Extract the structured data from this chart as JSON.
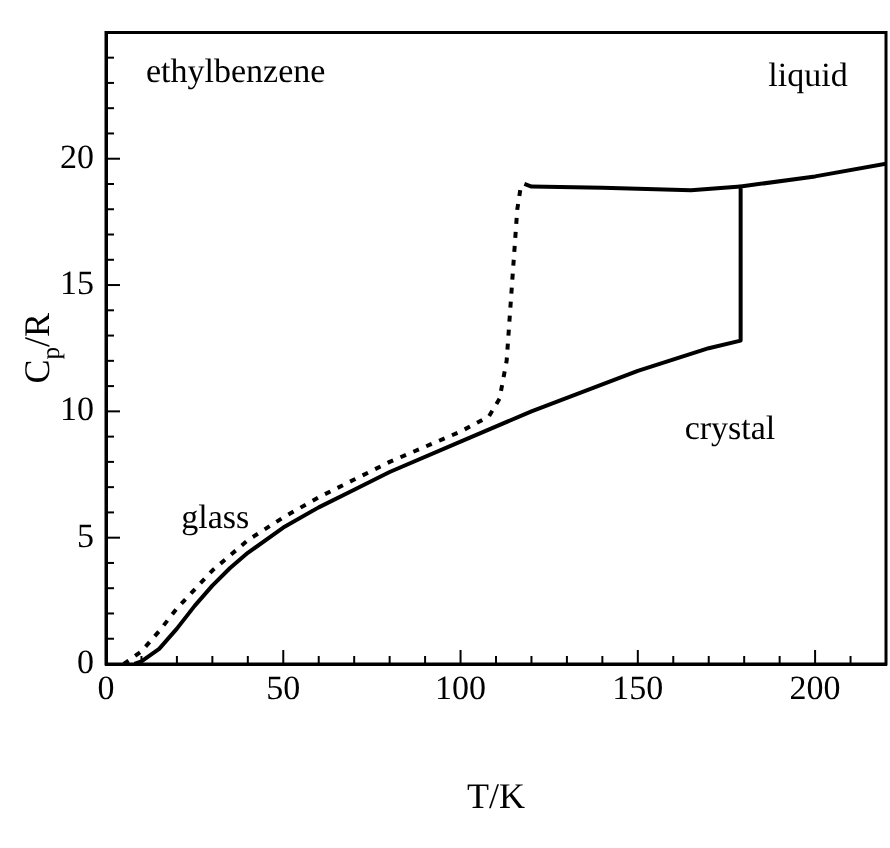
{
  "chart_data": {
    "type": "line",
    "title": "ethylbenzene",
    "xlabel": "T/K",
    "ylabel": "C$_{p}$/R",
    "xlim": [
      0,
      220
    ],
    "ylim": [
      0,
      25
    ],
    "xticks": [
      0,
      {
        "value": 10,
        "label": null
      },
      {
        "value": 20,
        "label": null
      },
      {
        "value": 30,
        "label": null
      },
      {
        "value": 40,
        "label": null
      },
      50,
      {
        "value": 60,
        "label": null
      },
      {
        "value": 70,
        "label": null
      },
      {
        "value": 80,
        "label": null
      },
      {
        "value": 90,
        "label": null
      },
      100,
      {
        "value": 110,
        "label": null
      },
      {
        "value": 120,
        "label": null
      },
      {
        "value": 130,
        "label": null
      },
      {
        "value": 140,
        "label": null
      },
      150,
      {
        "value": 160,
        "label": null
      },
      {
        "value": 170,
        "label": null
      },
      {
        "value": 180,
        "label": null
      },
      {
        "value": 190,
        "label": null
      },
      200,
      {
        "value": 210,
        "label": null
      }
    ],
    "yticks": [
      0,
      {
        "value": 1,
        "label": null
      },
      {
        "value": 2,
        "label": null
      },
      {
        "value": 3,
        "label": null
      },
      {
        "value": 4,
        "label": null
      },
      5,
      {
        "value": 6,
        "label": null
      },
      {
        "value": 7,
        "label": null
      },
      {
        "value": 8,
        "label": null
      },
      {
        "value": 9,
        "label": null
      },
      10,
      {
        "value": 11,
        "label": null
      },
      {
        "value": 12,
        "label": null
      },
      {
        "value": 13,
        "label": null
      },
      {
        "value": 14,
        "label": null
      },
      15,
      {
        "value": 16,
        "label": null
      },
      {
        "value": 17,
        "label": null
      },
      {
        "value": 18,
        "label": null
      },
      {
        "value": 19,
        "label": null
      },
      20,
      {
        "value": 21,
        "label": null
      },
      {
        "value": 22,
        "label": null
      },
      {
        "value": 23,
        "label": null
      },
      {
        "value": 24,
        "label": null
      }
    ],
    "grid": false,
    "legend": false,
    "marker": "none",
    "series": [
      {
        "color": "#000000",
        "line_style": "solid",
        "x": [
          8,
          10,
          15,
          20,
          25,
          30,
          35,
          40,
          50,
          60,
          70,
          80,
          100,
          120,
          150,
          170,
          179,
          179,
          200,
          220
        ],
        "values": [
          0,
          0.1,
          0.6,
          1.4,
          2.3,
          3.1,
          3.8,
          4.4,
          5.4,
          6.2,
          6.9,
          7.6,
          8.8,
          10,
          11.6,
          12.5,
          12.8,
          18.9,
          19.3,
          19.8
        ]
      },
      {
        "color": "#000000",
        "line_style": "solid",
        "x": [
          118,
          120,
          140,
          165,
          179
        ],
        "values": [
          19,
          18.9,
          18.85,
          18.75,
          18.9
        ]
      },
      {
        "color": "#000000",
        "line_style": "dotted",
        "x": [
          5,
          10,
          15,
          20,
          30,
          40,
          50,
          60,
          70,
          80,
          90,
          100,
          108,
          111,
          113,
          114,
          115,
          116,
          117,
          118
        ],
        "values": [
          0,
          0.5,
          1.3,
          2.2,
          3.7,
          4.9,
          5.8,
          6.6,
          7.3,
          8,
          8.6,
          9.2,
          9.8,
          10.5,
          12,
          14,
          16,
          18,
          18.9,
          19
        ]
      }
    ],
    "annotations": [
      "liquid",
      "crystal",
      "glass"
    ]
  }
}
